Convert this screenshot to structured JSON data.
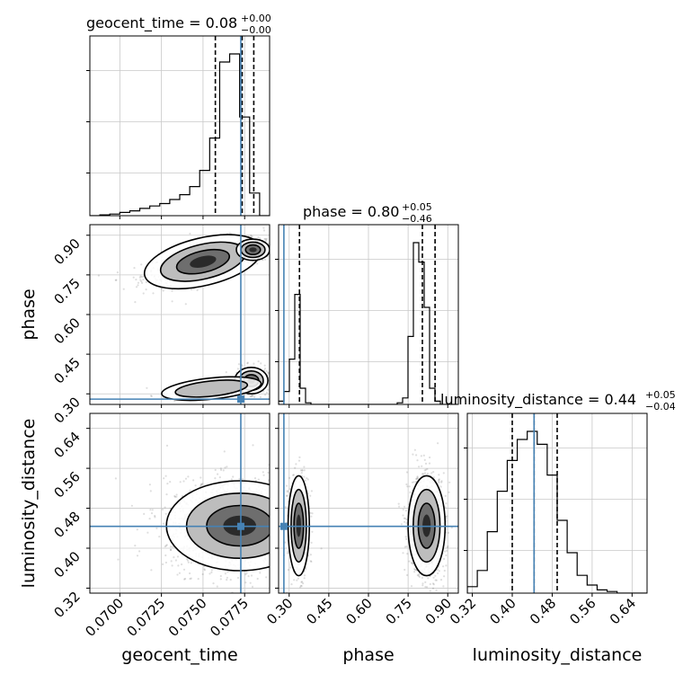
{
  "chart_data": {
    "type": "corner",
    "parameters": [
      {
        "name": "geocent_time",
        "axis_label": "geocent_time",
        "title": {
          "prefix": "geocent_time = ",
          "median": "0.08",
          "plus": "+0.00",
          "minus": "−0.00"
        },
        "range": [
          0.0682,
          0.079
        ],
        "ticks": [
          "0.0700",
          "0.0725",
          "0.0750",
          "0.0775"
        ],
        "tick_values": [
          0.07,
          0.0725,
          0.075,
          0.0775
        ],
        "truth": 0.07727,
        "quantiles": [
          0.07574,
          0.07735,
          0.07805
        ],
        "hist_bin_edges": [
          0.0682,
          0.0688,
          0.0694,
          0.07,
          0.0706,
          0.0712,
          0.0718,
          0.0724,
          0.073,
          0.0736,
          0.0742,
          0.0748,
          0.0754,
          0.076,
          0.0766,
          0.0772,
          0.0778,
          0.0784,
          0.079
        ],
        "hist_counts": [
          0,
          0.005,
          0.01,
          0.02,
          0.03,
          0.045,
          0.06,
          0.075,
          0.1,
          0.13,
          0.18,
          0.28,
          0.48,
          0.95,
          1.0,
          0.61,
          0.14,
          0
        ]
      },
      {
        "name": "phase",
        "axis_label": "phase",
        "title": {
          "prefix": "phase = ",
          "median": "0.80",
          "plus": "+0.05",
          "minus": "−0.46"
        },
        "range": [
          0.26,
          0.94
        ],
        "ticks": [
          "0.30",
          "0.45",
          "0.60",
          "0.75",
          "0.90"
        ],
        "tick_values": [
          0.3,
          0.45,
          0.6,
          0.75,
          0.9
        ],
        "truth": 0.28,
        "quantiles": [
          0.339,
          0.804,
          0.852
        ],
        "hist_bin_edges": [
          0.26,
          0.2804,
          0.3008,
          0.3212,
          0.3416,
          0.362,
          0.3824,
          0.4028,
          0.4232,
          0.4436,
          0.464,
          0.4844,
          0.5048,
          0.5252,
          0.5456,
          0.566,
          0.5864,
          0.6068,
          0.6272,
          0.6476,
          0.668,
          0.6884,
          0.7088,
          0.7292,
          0.7496,
          0.77,
          0.7904,
          0.8108,
          0.8312,
          0.8516,
          0.872,
          0.8924,
          0.9128,
          0.9332
        ],
        "hist_counts": [
          0.02,
          0.08,
          0.28,
          0.68,
          0.1,
          0.01,
          0,
          0,
          0,
          0,
          0,
          0,
          0,
          0,
          0,
          0,
          0,
          0,
          0,
          0,
          0,
          0,
          0.01,
          0.04,
          0.42,
          1.0,
          0.88,
          0.6,
          0.1,
          0.02,
          0,
          0,
          0
        ]
      },
      {
        "name": "luminosity_distance",
        "axis_label": "luminosity_distance",
        "title": {
          "prefix": "luminosity_distance = ",
          "median": "0.44",
          "plus": "+0.05",
          "minus": "−0.04"
        },
        "range": [
          0.31,
          0.67
        ],
        "ticks": [
          "0.32",
          "0.40",
          "0.48",
          "0.56",
          "0.64"
        ],
        "tick_values": [
          0.32,
          0.4,
          0.48,
          0.56,
          0.64
        ],
        "truth": 0.4437,
        "quantiles": [
          0.4,
          0.4437,
          0.49
        ],
        "hist_bin_edges": [
          0.31,
          0.33,
          0.35,
          0.37,
          0.39,
          0.41,
          0.43,
          0.45,
          0.47,
          0.49,
          0.51,
          0.53,
          0.55,
          0.57,
          0.59,
          0.61,
          0.63,
          0.65,
          0.67
        ],
        "hist_counts": [
          0.04,
          0.14,
          0.38,
          0.63,
          0.82,
          0.95,
          1.0,
          0.92,
          0.73,
          0.45,
          0.25,
          0.11,
          0.05,
          0.02,
          0.01,
          0,
          0,
          0
        ]
      }
    ],
    "panels_2d": [
      {
        "x": "geocent_time",
        "y": "phase",
        "density_samples": [
          {
            "cx": 0.075,
            "cy": 0.8,
            "sx": 0.0018,
            "sy": 0.045,
            "w": 0.45,
            "n": 700,
            "corr": 0.6
          },
          {
            "cx": 0.078,
            "cy": 0.845,
            "sx": 0.0005,
            "sy": 0.02,
            "w": 0.25,
            "n": 450,
            "corr": 0
          },
          {
            "cx": 0.0779,
            "cy": 0.35,
            "sx": 0.0005,
            "sy": 0.025,
            "w": 0.25,
            "n": 350,
            "corr": 0
          },
          {
            "cx": 0.0755,
            "cy": 0.32,
            "sx": 0.0015,
            "sy": 0.02,
            "w": 0.05,
            "n": 120,
            "corr": 0.5
          }
        ],
        "contour_levels": 3
      },
      {
        "x": "geocent_time",
        "y": "luminosity_distance",
        "density_samples": [
          {
            "cx": 0.0772,
            "cy": 0.445,
            "sx": 0.0022,
            "sy": 0.045,
            "w": 1.0,
            "n": 1600,
            "corr": 0
          }
        ],
        "contour_levels": 3
      },
      {
        "x": "phase",
        "y": "luminosity_distance",
        "density_samples": [
          {
            "cx": 0.336,
            "cy": 0.445,
            "sx": 0.02,
            "sy": 0.05,
            "w": 0.3,
            "n": 550,
            "corr": 0
          },
          {
            "cx": 0.82,
            "cy": 0.445,
            "sx": 0.035,
            "sy": 0.05,
            "w": 0.7,
            "n": 1100,
            "corr": 0
          }
        ],
        "contour_levels": 3
      }
    ],
    "truth_color": "#4682b4",
    "quantile_style": "dashed",
    "grid": true
  }
}
